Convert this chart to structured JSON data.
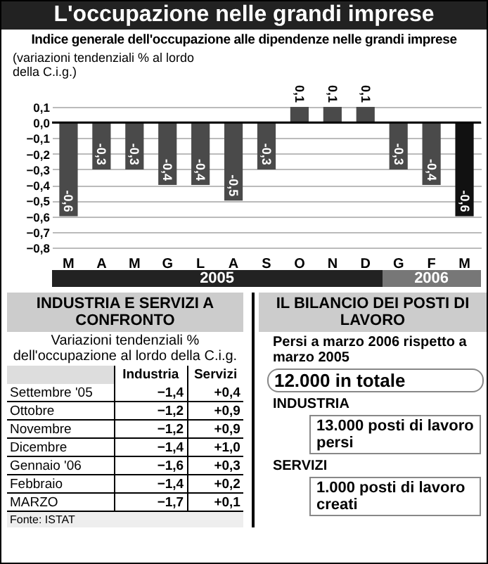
{
  "chart_data": [
    {
      "type": "bar",
      "title": "L'occupazione nelle grandi imprese",
      "subtitle": "Indice generale dell'occupazione alle dipendenze nelle grandi imprese",
      "ylabel": "(variazioni tendenziali % al lordo della C.i.g.)",
      "categories": [
        "M",
        "A",
        "M",
        "G",
        "L",
        "A",
        "S",
        "O",
        "N",
        "D",
        "G",
        "F",
        "M"
      ],
      "values": [
        -0.6,
        -0.3,
        -0.3,
        -0.4,
        -0.4,
        -0.5,
        -0.3,
        0.1,
        0.1,
        0.1,
        -0.3,
        -0.4,
        -0.6
      ],
      "colors": [
        "#4a4a4a",
        "#4a4a4a",
        "#4a4a4a",
        "#4a4a4a",
        "#4a4a4a",
        "#4a4a4a",
        "#4a4a4a",
        "#4a4a4a",
        "#4a4a4a",
        "#4a4a4a",
        "#4a4a4a",
        "#4a4a4a",
        "#111111"
      ],
      "data_labels": true,
      "value_labels": [
        "-0,6",
        "-0,3",
        "-0,3",
        "-0,4",
        "-0,4",
        "-0,5",
        "-0,3",
        "0,1",
        "0,1",
        "0,1",
        "-0,3",
        "-0,4",
        "-0,6"
      ],
      "ylim": [
        -0.8,
        0.1
      ],
      "yticks": [
        {
          "value": 0.1,
          "label": "0,1"
        },
        {
          "value": 0,
          "label": "0,0"
        },
        {
          "value": -0.1,
          "label": "−0,1"
        },
        {
          "value": -0.2,
          "label": "−0,2"
        },
        {
          "value": -0.3,
          "label": "−0,3"
        },
        {
          "value": -0.4,
          "label": "−0,4"
        },
        {
          "value": -0.5,
          "label": "−0,5"
        },
        {
          "value": -0.6,
          "label": "−0,6"
        },
        {
          "value": -0.7,
          "label": "−0,7"
        },
        {
          "value": -0.8,
          "label": "−0,8"
        }
      ],
      "grid": "y",
      "annotations": [
        "2005",
        "2006"
      ]
    },
    {
      "type": "other",
      "title": "INDUSTRIA E SERVIZI A CONFRONTO",
      "subtitle": "Variazioni tendenziali % dell'occupazione al lordo della C.i.g.",
      "categories": [
        "Settembre '05",
        "Ottobre",
        "Novembre",
        "Dicembre",
        "Gennaio '06",
        "Febbraio",
        "MARZO"
      ],
      "series": [
        {
          "name": "Industria",
          "color": "#ffffff",
          "values": [
            -1.4,
            -1.2,
            -1.2,
            -1.4,
            -1.6,
            -1.4,
            -1.7
          ],
          "value_labels": [
            "−1,4",
            "−1,2",
            "−1,2",
            "−1,4",
            "−1,6",
            "−1,4",
            "−1,7"
          ]
        },
        {
          "name": "Servizi",
          "color": "#ffffff",
          "values": [
            0.4,
            0.9,
            0.9,
            1.0,
            0.3,
            0.2,
            0.1
          ],
          "value_labels": [
            "+0,4",
            "+0,9",
            "+0,9",
            "+1,0",
            "+0,3",
            "+0,2",
            "+0,1"
          ]
        }
      ],
      "annotations": [
        "Fonte: ISTAT"
      ]
    },
    {
      "type": "other",
      "title": "IL BILANCIO DEI POSTI DI LAVORO",
      "annotations": [
        "Persi a marzo 2006 rispetto a marzo 2005",
        "12.000 in totale",
        "INDUSTRIA",
        "13.000 posti di lavoro persi",
        "SERVIZI",
        "1.000 posti di lavoro creati"
      ]
    }
  ]
}
